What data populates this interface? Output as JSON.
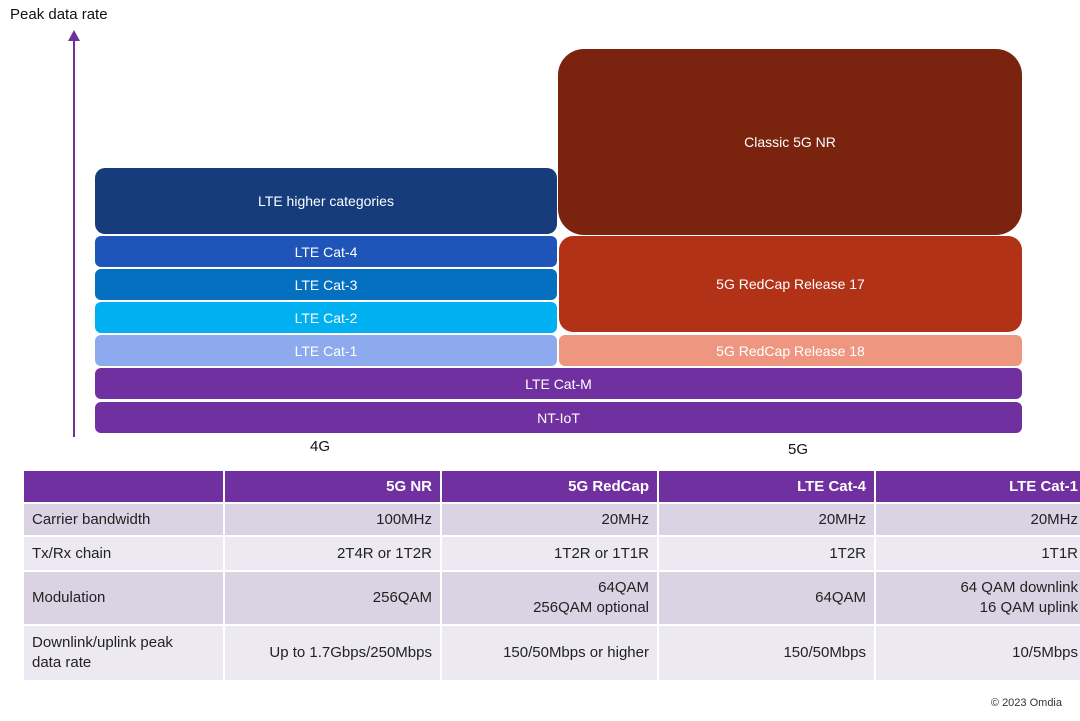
{
  "diagram": {
    "axis_title": "Peak data rate",
    "colors": {
      "axis": "#7030a0",
      "lte_higher": "#163c7c",
      "lte_cat4": "#1f55b8",
      "lte_cat3": "#0570c0",
      "lte_cat2": "#00b0f0",
      "lte_cat1": "#8eaaee",
      "classic_nr": "#7a230f",
      "redcap17": "#b23218",
      "redcap18": "#ee9680",
      "lte_catm": "#7030a0",
      "nbiot": "#7030a0"
    },
    "blocks": {
      "lte_higher": "LTE higher categories",
      "lte_cat4": "LTE Cat-4",
      "lte_cat3": "LTE Cat-3",
      "lte_cat2": "LTE Cat-2",
      "lte_cat1": "LTE Cat-1",
      "classic_nr": "Classic 5G NR",
      "redcap17": "5G RedCap Release 17",
      "redcap18": "5G RedCap Release 18",
      "lte_catm": "LTE Cat-M",
      "nbiot": "NT-IoT"
    },
    "gen_4g": "4G",
    "gen_5g": "5G"
  },
  "table": {
    "headers": [
      "",
      "5G NR",
      "5G RedCap",
      "LTE Cat-4",
      "LTE Cat-1"
    ],
    "rows": [
      [
        "Carrier bandwidth",
        "100MHz",
        "20MHz",
        "20MHz",
        "20MHz"
      ],
      [
        "Tx/Rx chain",
        "2T4R or 1T2R",
        "1T2R or 1T1R",
        "1T2R",
        "1T1R"
      ],
      [
        "Modulation",
        "256QAM",
        "64QAM\n256QAM optional",
        "64QAM",
        "64 QAM downlink\n16 QAM uplink"
      ],
      [
        "Downlink/uplink peak\ndata rate",
        "Up to 1.7Gbps/250Mbps",
        "150/50Mbps or higher",
        "150/50Mbps",
        "10/5Mbps"
      ]
    ]
  },
  "copyright": "© 2023 Omdia"
}
